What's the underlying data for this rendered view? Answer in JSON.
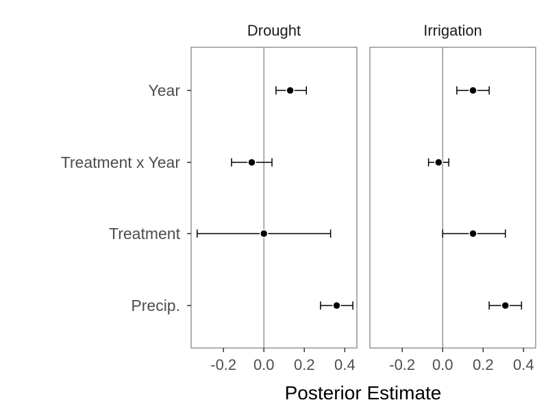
{
  "chart_data": {
    "type": "forest-plot",
    "xlabel": "Posterior Estimate",
    "xlim": [
      -0.36,
      0.46
    ],
    "xticks": [
      -0.2,
      0.0,
      0.2,
      0.4
    ],
    "xtick_labels": [
      "-0.2",
      "0.0",
      "0.2",
      "0.4"
    ],
    "reference_line_x": 0,
    "categories": [
      "Year",
      "Treatment x Year",
      "Treatment",
      "Precip."
    ],
    "panels": [
      {
        "title": "Drought",
        "estimates": [
          {
            "term": "Year",
            "estimate": 0.13,
            "lower": 0.06,
            "upper": 0.21
          },
          {
            "term": "Treatment x Year",
            "estimate": -0.06,
            "lower": -0.16,
            "upper": 0.04
          },
          {
            "term": "Treatment",
            "estimate": 0.0,
            "lower": -0.33,
            "upper": 0.33
          },
          {
            "term": "Precip.",
            "estimate": 0.36,
            "lower": 0.28,
            "upper": 0.44
          }
        ]
      },
      {
        "title": "Irrigation",
        "estimates": [
          {
            "term": "Year",
            "estimate": 0.15,
            "lower": 0.07,
            "upper": 0.23
          },
          {
            "term": "Treatment x Year",
            "estimate": -0.02,
            "lower": -0.07,
            "upper": 0.03
          },
          {
            "term": "Treatment",
            "estimate": 0.15,
            "lower": 0.0,
            "upper": 0.31
          },
          {
            "term": "Precip.",
            "estimate": 0.31,
            "lower": 0.23,
            "upper": 0.39
          }
        ]
      }
    ],
    "grid": false,
    "legend": "none"
  }
}
